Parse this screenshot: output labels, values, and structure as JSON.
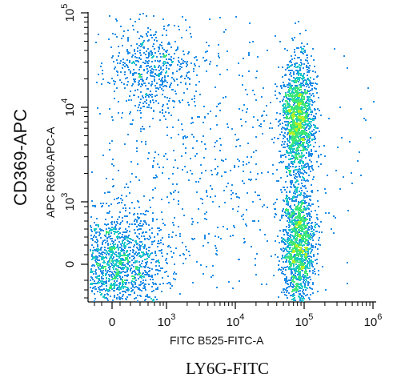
{
  "chart_data": {
    "type": "scatter",
    "title": "",
    "outer_xlabel": "LY6G-FITC",
    "outer_ylabel": "CD369-APC",
    "xlabel": "FITC B525-FITC-A",
    "ylabel": "APC R660-APC-A",
    "x_scale": "biexponential",
    "y_scale": "biexponential",
    "x_ticks": [
      {
        "value": "0",
        "label": "0"
      },
      {
        "value": "1e3",
        "label": "10",
        "exp": "3"
      },
      {
        "value": "1e4",
        "label": "10",
        "exp": "4"
      },
      {
        "value": "1e5",
        "label": "10",
        "exp": "5"
      },
      {
        "value": "1e6",
        "label": "10",
        "exp": "6"
      }
    ],
    "y_ticks": [
      {
        "value": "0",
        "label": "0"
      },
      {
        "value": "1e3",
        "label": "10",
        "exp": "3"
      },
      {
        "value": "1e4",
        "label": "10",
        "exp": "4"
      },
      {
        "value": "1e5",
        "label": "10",
        "exp": "5"
      }
    ],
    "populations": [
      {
        "x": 80,
        "y": 50,
        "x_spread": 0.35,
        "y_spread": 0.28,
        "density": "high"
      },
      {
        "x": 700,
        "y": 25000,
        "x_spread": 0.3,
        "y_spread": 0.25,
        "density": "low"
      },
      {
        "x": 80000,
        "y": 300,
        "x_spread": 0.12,
        "y_spread": 0.35,
        "density": "high"
      },
      {
        "x": 80000,
        "y": 8000,
        "x_spread": 0.12,
        "y_spread": 0.3,
        "density": "high"
      }
    ],
    "grid": false,
    "colormap": [
      "#1f3cff",
      "#1e8ce6",
      "#19c8c8",
      "#3ce678",
      "#b4f028"
    ]
  }
}
